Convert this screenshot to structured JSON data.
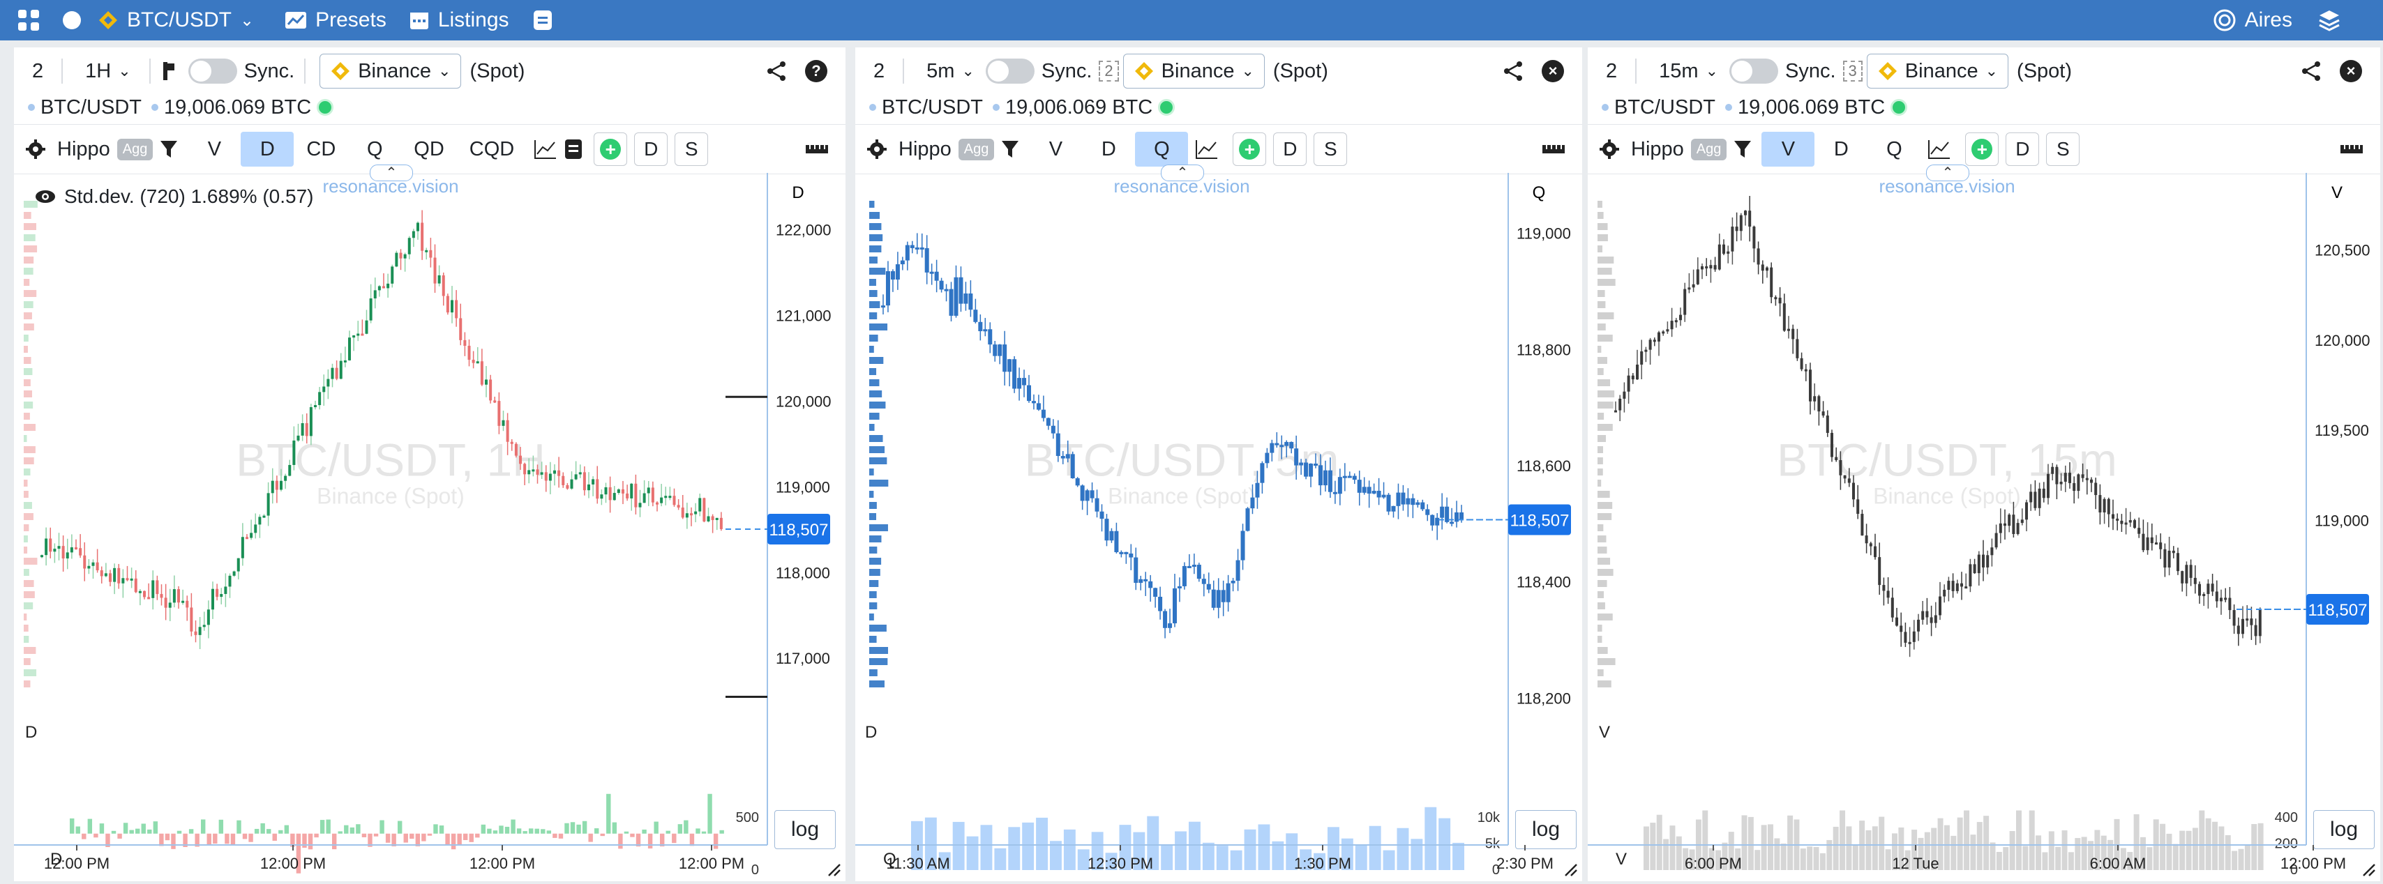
{
  "topbar": {
    "symbol": "BTC/USDT",
    "presets": "Presets",
    "listings": "Listings",
    "user": "Aires"
  },
  "colors": {
    "topbar": "#3a78c2",
    "green": "#1a8f55",
    "red": "#e87070",
    "blue": "#2f74c4",
    "dark": "#3a3a3a",
    "price_tag": "#1a73e8"
  },
  "panels": [
    {
      "layout": "2",
      "timeframe": "1H",
      "sync_label": "Sync.",
      "exchange": "Binance",
      "market": "(Spot)",
      "pair": "BTC/USDT",
      "volume": "19,006.069 BTC",
      "indicator": "Hippo",
      "agg": "Agg",
      "modes": [
        "V",
        "D",
        "CD",
        "Q",
        "QD",
        "CQD"
      ],
      "active_mode": "D",
      "extra_buttons": [
        "D",
        "S"
      ],
      "watermark": "BTC/USDT, 1H",
      "watermark_sub": "Binance (Spot)",
      "brand": "resonance.vision",
      "stddev": "Std.dev. (720) 1.689% (0.57)",
      "axis_top_label": "D",
      "left_label": "D",
      "sub_label": "D",
      "price_tag": "118,507",
      "log": "log",
      "chart_data": {
        "type": "candlestick",
        "y_ticks": [
          "122,000",
          "121,000",
          "120,000",
          "119,000",
          "118,000",
          "117,000"
        ],
        "sub_ticks": [
          "500",
          "0"
        ],
        "x_ticks": [
          "12:00 PM",
          "12:00 PM",
          "12:00 PM",
          "12:00 PM"
        ],
        "ylim": [
          116400,
          122500
        ],
        "last_price": 118507,
        "high": 122300,
        "low": 116650
      }
    },
    {
      "layout": "2",
      "timeframe": "5m",
      "sync_label": "Sync.",
      "sync_badge": "2",
      "exchange": "Binance",
      "market": "(Spot)",
      "pair": "BTC/USDT",
      "volume": "19,006.069 BTC",
      "indicator": "Hippo",
      "agg": "Agg",
      "modes": [
        "V",
        "D",
        "Q"
      ],
      "active_mode": "Q",
      "extra_buttons": [
        "D",
        "S"
      ],
      "watermark": "BTC/USDT, 5m",
      "watermark_sub": "Binance (Spot)",
      "brand": "resonance.vision",
      "axis_top_label": "Q",
      "left_label": "D",
      "sub_label": "Q",
      "price_tag": "118,507",
      "log": "log",
      "chart_data": {
        "type": "candlestick",
        "y_ticks": [
          "119,000",
          "118,800",
          "118,600",
          "118,400",
          "118,200"
        ],
        "sub_ticks": [
          "10k",
          "5k",
          "0"
        ],
        "x_ticks": [
          "11:30 AM",
          "12:30 PM",
          "1:30 PM",
          "2:30 PM"
        ],
        "ylim": [
          118180,
          119080
        ],
        "last_price": 118507,
        "high": 119050,
        "low": 118200
      }
    },
    {
      "layout": "2",
      "timeframe": "15m",
      "sync_label": "Sync.",
      "sync_badge": "3",
      "exchange": "Binance",
      "market": "(Spot)",
      "pair": "BTC/USDT",
      "volume": "19,006.069 BTC",
      "indicator": "Hippo",
      "agg": "Agg",
      "modes": [
        "V",
        "D",
        "Q"
      ],
      "active_mode": "V",
      "extra_buttons": [
        "D",
        "S"
      ],
      "watermark": "BTC/USDT, 15m",
      "watermark_sub": "Binance (Spot)",
      "brand": "resonance.vision",
      "axis_top_label": "V",
      "left_label": "V",
      "sub_label": "V",
      "price_tag": "118,507",
      "log": "log",
      "chart_data": {
        "type": "candlestick",
        "y_ticks": [
          "120,500",
          "120,000",
          "119,500",
          "119,000",
          "118,500"
        ],
        "sub_ticks": [
          "400",
          "200",
          "0"
        ],
        "x_ticks": [
          "6:00 PM",
          "12 Tue",
          "6:00 AM",
          "12:00 PM"
        ],
        "ylim": [
          117950,
          120850
        ],
        "last_price": 118507,
        "high": 120800,
        "low": 118000
      }
    }
  ]
}
